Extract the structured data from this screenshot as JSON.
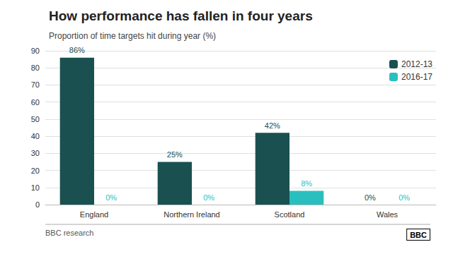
{
  "chart_data": {
    "type": "bar",
    "title": "How performance has fallen in four years",
    "subtitle": "Proportion of time targets hit during year (%)",
    "categories": [
      "England",
      "Northern Ireland",
      "Scotland",
      "Wales"
    ],
    "series": [
      {
        "name": "2012-13",
        "color": "#1a5050",
        "values": [
          86,
          25,
          42,
          0
        ],
        "value_labels": [
          "86%",
          "25%",
          "42%",
          "0%"
        ]
      },
      {
        "name": "2016-17",
        "color": "#2abfbf",
        "values": [
          0,
          0,
          8,
          0
        ],
        "value_labels": [
          "0%",
          "0%",
          "8%",
          "0%"
        ]
      }
    ],
    "ylim": [
      0,
      90
    ],
    "yticks": [
      0,
      10,
      20,
      30,
      40,
      50,
      60,
      70,
      80,
      90
    ],
    "grid": true,
    "legend": "upper right",
    "data_labels": true,
    "annotations": [
      "BBC research",
      "BBC"
    ]
  }
}
